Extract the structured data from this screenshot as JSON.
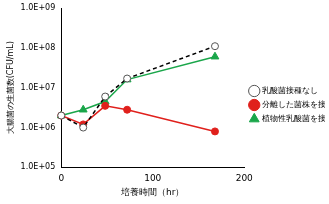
{
  "chart_data": {
    "type": "line",
    "x_label": "培養時間（hr）",
    "y_label": "大腸菌の生菌数(CFU/mL)",
    "x": [
      0,
      24,
      48,
      72,
      168
    ],
    "series": [
      {
        "name": "乳酸菌接種なし",
        "color": "#000000",
        "marker": "circle_open",
        "line_style": "dashed",
        "values": [
          2000000,
          1000000,
          6000000,
          17000000,
          110000000
        ]
      },
      {
        "name": "分離した菌株を接種",
        "color": "#e0201c",
        "marker": "circle",
        "line_style": "solid",
        "values": [
          2000000,
          1200000,
          3500000,
          2800000,
          800000
        ]
      },
      {
        "name": "植物性乳酸菌を接種",
        "color": "#1aa64a",
        "marker": "triangle",
        "line_style": "solid",
        "values": [
          2000000,
          2800000,
          4500000,
          16000000,
          60000000
        ]
      }
    ],
    "xlim": [
      0,
      200
    ],
    "xticks": [
      0,
      100,
      200
    ],
    "ylim": [
      100000,
      1000000000
    ],
    "yticks": [
      {
        "value": 100000,
        "label": "1.0E+05"
      },
      {
        "value": 1000000,
        "label": "1.0E+06"
      },
      {
        "value": 10000000,
        "label": "1.0E+07"
      },
      {
        "value": 100000000,
        "label": "1.0E+08"
      },
      {
        "value": 1000000000,
        "label": "1.0E+09"
      }
    ],
    "log": "y",
    "grid": false,
    "legend": "right"
  }
}
